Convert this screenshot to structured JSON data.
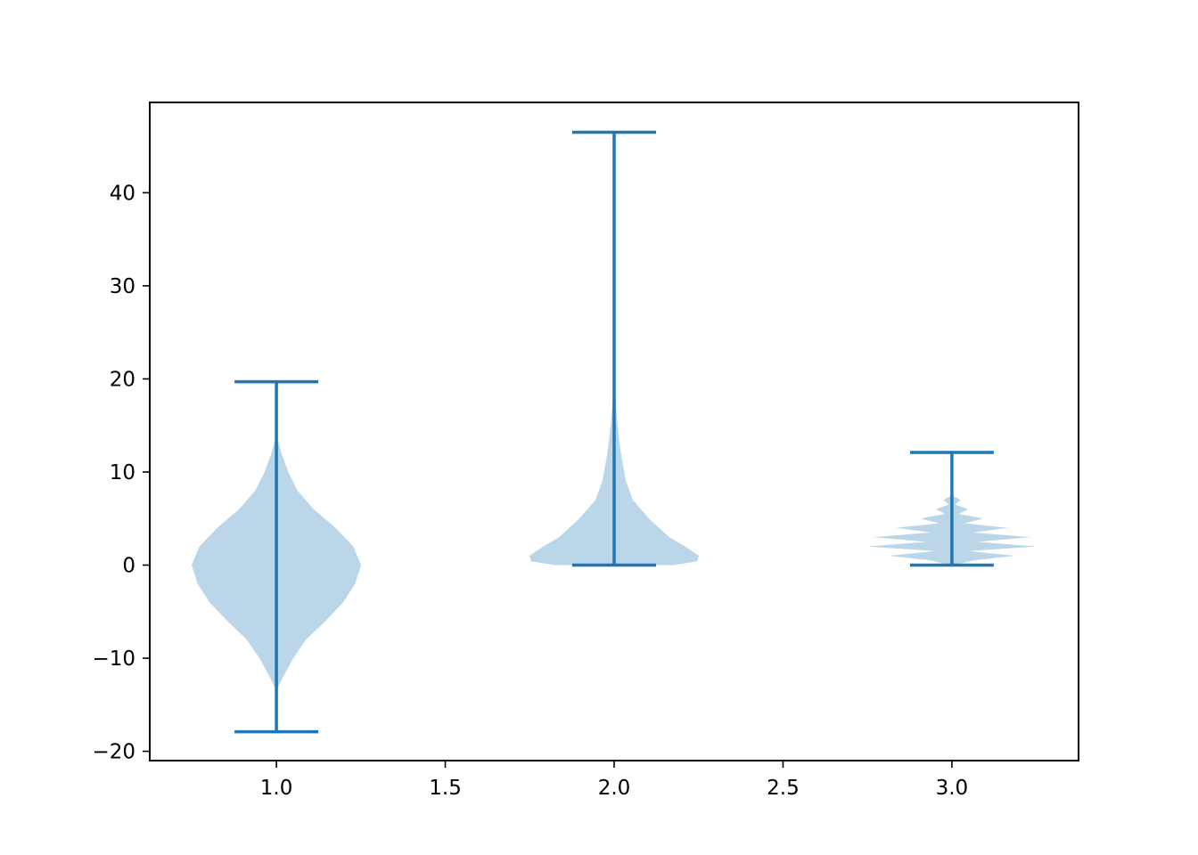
{
  "chart_data": {
    "type": "violin",
    "title": "",
    "xlabel": "",
    "ylabel": "",
    "xlim": [
      0.625,
      3.375
    ],
    "ylim": [
      -21,
      49.7
    ],
    "grid": false,
    "x_ticks": [
      1.0,
      1.5,
      2.0,
      2.5,
      3.0
    ],
    "x_tick_labels": [
      "1.0",
      "1.5",
      "2.0",
      "2.5",
      "3.0"
    ],
    "y_ticks": [
      -20,
      -10,
      0,
      10,
      20,
      30,
      40
    ],
    "y_tick_labels": [
      "−20",
      "−10",
      "0",
      "10",
      "20",
      "30",
      "40"
    ],
    "colors": {
      "body": "#1f77b4",
      "body_alpha": 0.3,
      "lines": "#1f77b4",
      "axes": "#000000"
    },
    "series": [
      {
        "position": 1.0,
        "min": -17.9,
        "max": 19.7,
        "density_profile": [
          [
            -13.5,
            0.0
          ],
          [
            -15,
            0.0
          ],
          [
            -12,
            0.08
          ],
          [
            -10,
            0.2
          ],
          [
            -8,
            0.35
          ],
          [
            -6,
            0.58
          ],
          [
            -4,
            0.79
          ],
          [
            -2,
            0.93
          ],
          [
            0,
            1.0
          ],
          [
            2,
            0.91
          ],
          [
            4,
            0.7
          ],
          [
            6,
            0.44
          ],
          [
            8,
            0.25
          ],
          [
            10,
            0.14
          ],
          [
            12,
            0.06
          ],
          [
            14,
            0.0
          ]
        ]
      },
      {
        "position": 2.0,
        "min": 0.0,
        "max": 46.5,
        "density_profile": [
          [
            0.0,
            0.7
          ],
          [
            0.4,
            0.98
          ],
          [
            1.0,
            1.0
          ],
          [
            2,
            0.84
          ],
          [
            3,
            0.65
          ],
          [
            5,
            0.41
          ],
          [
            7,
            0.22
          ],
          [
            9,
            0.14
          ],
          [
            12,
            0.08
          ],
          [
            15,
            0.04
          ],
          [
            20,
            0.0
          ]
        ]
      },
      {
        "position": 3.0,
        "min": 0.0,
        "max": 12.1,
        "density_profile": [
          [
            0.0,
            0.03
          ],
          [
            0.5,
            0.25
          ],
          [
            1.0,
            0.74
          ],
          [
            1.5,
            0.2
          ],
          [
            2.0,
            1.0
          ],
          [
            2.5,
            0.3
          ],
          [
            3.0,
            0.93
          ],
          [
            3.5,
            0.25
          ],
          [
            4.0,
            0.66
          ],
          [
            4.5,
            0.15
          ],
          [
            5.0,
            0.37
          ],
          [
            5.5,
            0.08
          ],
          [
            6.0,
            0.19
          ],
          [
            6.5,
            0.04
          ],
          [
            7.0,
            0.1
          ],
          [
            7.5,
            0.0
          ]
        ]
      }
    ]
  }
}
